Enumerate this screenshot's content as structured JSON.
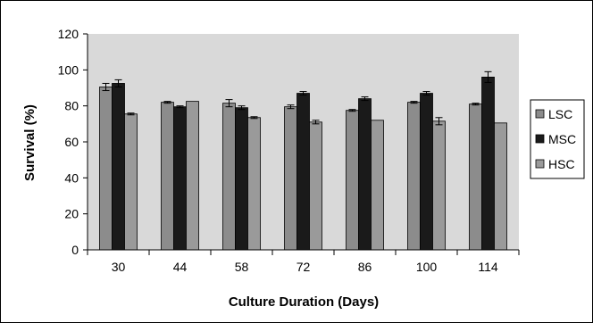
{
  "chart_data": {
    "type": "bar",
    "categories": [
      "30",
      "44",
      "58",
      "72",
      "86",
      "100",
      "114"
    ],
    "series": [
      {
        "name": "LSC",
        "color": "#8c8c8c",
        "values": [
          90.5,
          82,
          81.5,
          79.5,
          77.5,
          82,
          81
        ],
        "errors": [
          2,
          0.5,
          2,
          1,
          0.5,
          0.5,
          0.5
        ]
      },
      {
        "name": "MSC",
        "color": "#1a1a1a",
        "values": [
          92.5,
          79.5,
          79,
          87,
          84,
          87,
          96
        ],
        "errors": [
          2,
          0.5,
          1,
          1,
          1,
          1,
          3
        ]
      },
      {
        "name": "HSC",
        "color": "#9a9a9a",
        "values": [
          75.5,
          82.5,
          73.5,
          71,
          72,
          71.5,
          70.5
        ],
        "errors": [
          0.5,
          0,
          0.5,
          1,
          0,
          2,
          0
        ]
      }
    ],
    "xlabel": "Culture Duration (Days)",
    "ylabel": "Survival (%)",
    "ylim": [
      0,
      120
    ],
    "yticks": [
      0,
      20,
      40,
      60,
      80,
      100,
      120
    ],
    "grid": false,
    "plot_background": "#d9d9d9",
    "legend_position": "right"
  }
}
